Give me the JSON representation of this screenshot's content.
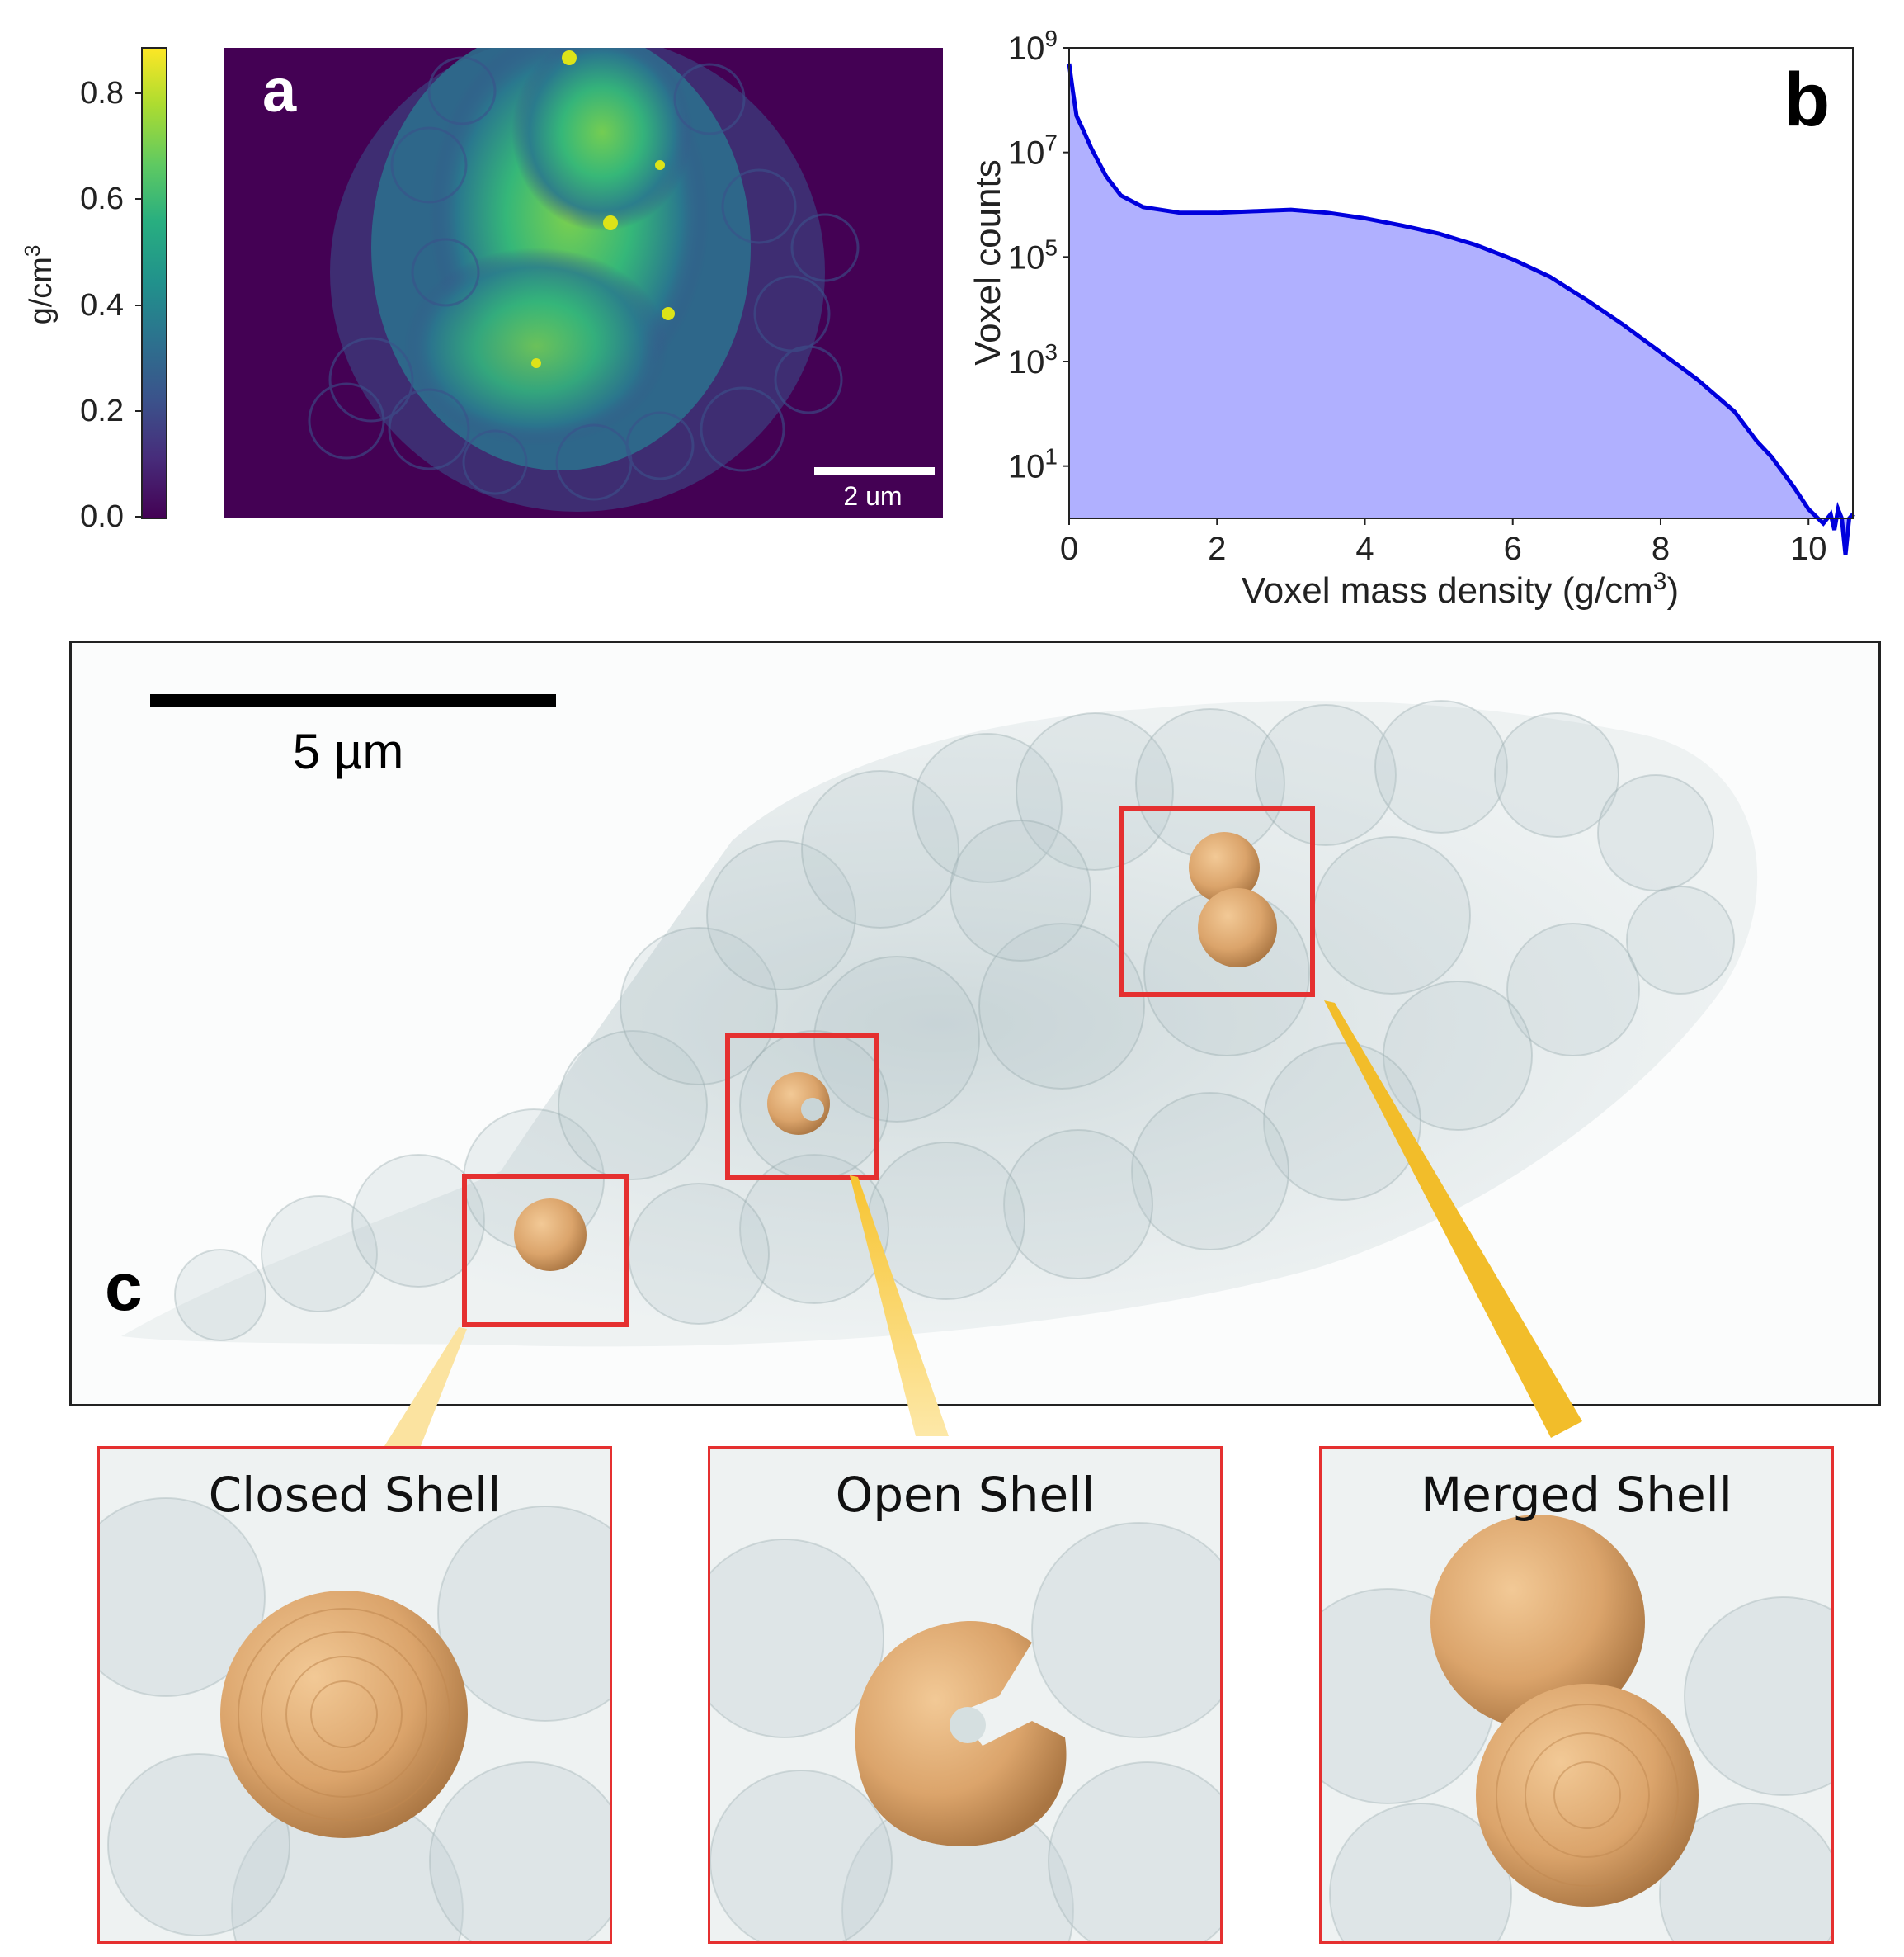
{
  "panel_a": {
    "label": "a",
    "colorbar": {
      "unit": "g/cm3",
      "unit_base": "g/cm",
      "unit_sup": "3",
      "ticks": [
        "0.0",
        "0.2",
        "0.4",
        "0.6",
        "0.8"
      ],
      "range": [
        0.0,
        0.88
      ],
      "colormap": "viridis"
    },
    "scale_bar": "2 um"
  },
  "panel_b": {
    "label": "b",
    "chart_data": {
      "type": "area",
      "xlabel": "Voxel mass density (g/cm3)",
      "xlabel_base": "Voxel mass density (g/cm",
      "xlabel_sup": "3",
      "xlabel_end": ")",
      "ylabel": "Voxel counts",
      "y_scale": "log",
      "xlim": [
        0,
        10.6
      ],
      "ylim": [
        1,
        1000000000
      ],
      "x_ticks": [
        "0",
        "2",
        "4",
        "6",
        "8",
        "10"
      ],
      "y_ticks": [
        {
          "base": "10",
          "exp": "1",
          "value": 10
        },
        {
          "base": "10",
          "exp": "3",
          "value": 1000
        },
        {
          "base": "10",
          "exp": "5",
          "value": 100000
        },
        {
          "base": "10",
          "exp": "7",
          "value": 10000000
        },
        {
          "base": "10",
          "exp": "9",
          "value": 1000000000
        }
      ],
      "fill_color": "#b0b0ff",
      "line_color": "#0000dd",
      "x": [
        0,
        0.05,
        0.1,
        0.2,
        0.3,
        0.5,
        0.7,
        1.0,
        1.5,
        2.0,
        2.5,
        3.0,
        3.5,
        4.0,
        4.5,
        5.0,
        5.5,
        6.0,
        6.5,
        7.0,
        7.5,
        8.0,
        8.5,
        9.0,
        9.3,
        9.5,
        9.8,
        10.0,
        10.2,
        10.3,
        10.35,
        10.4,
        10.45,
        10.5,
        10.55,
        10.6
      ],
      "y": [
        500000000,
        150000000,
        50000000,
        25000000,
        12000000,
        3500000,
        1500000,
        900000,
        700000,
        700000,
        750000,
        800000,
        700000,
        550000,
        400000,
        280000,
        170000,
        90000,
        42000,
        15000,
        5000,
        1500,
        450,
        110,
        30,
        15,
        4,
        1.5,
        0.8,
        1.2,
        0.6,
        1.5,
        1.0,
        0.2,
        1.0,
        1.2
      ]
    }
  },
  "panel_c": {
    "label": "c",
    "scale_bar": "5 µm",
    "highlight_color": "#e53030",
    "callout_color": "#f5c12e",
    "insets": [
      {
        "title": "Closed Shell"
      },
      {
        "title": "Open Shell"
      },
      {
        "title": "Merged Shell"
      }
    ]
  }
}
